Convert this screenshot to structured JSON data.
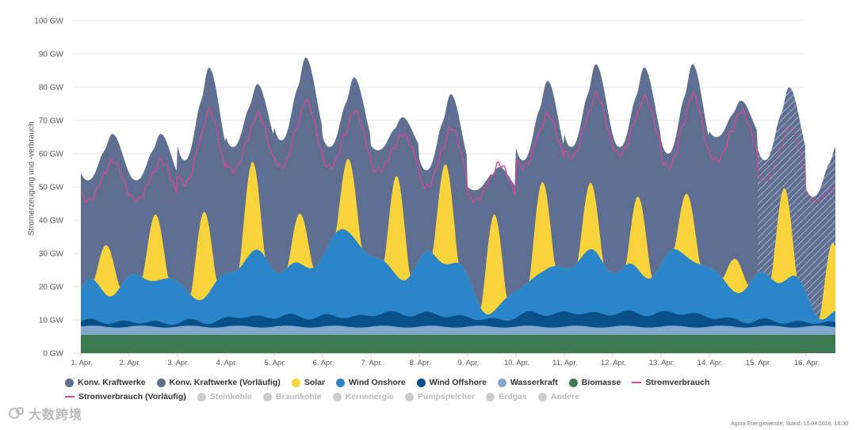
{
  "chart_data": {
    "type": "area",
    "y_axis_label": "Stromerzeugung und -verbrauch",
    "ylim": [
      0,
      100
    ],
    "y_ticks": [
      "0 GW",
      "10 GW",
      "20 GW",
      "30 GW",
      "40 GW",
      "50 GW",
      "60 GW",
      "70 GW",
      "80 GW",
      "90 GW",
      "100 GW"
    ],
    "x_range_days": [
      0,
      15.6
    ],
    "x_ticks": [
      "1. Apr.",
      "2. Apr.",
      "3. Apr.",
      "4. Apr.",
      "5. Apr.",
      "6. Apr.",
      "7. Apr.",
      "8. Apr.",
      "9. Apr.",
      "10. Apr.",
      "11. Apr.",
      "12. Apr.",
      "13. Apr.",
      "14. Apr.",
      "15. Apr.",
      "16. Apr."
    ],
    "provisional_from_day": 14.0,
    "series_stacked": [
      {
        "name": "Biomasse",
        "color": "#3d7a52",
        "base": 5.5,
        "amp": 0
      },
      {
        "name": "Wasserkraft",
        "color": "#7fa8cc",
        "base": 2.5,
        "amp": 0.3
      },
      {
        "name": "Wind Offshore",
        "color": "#08508a",
        "day_values": [
          1.5,
          1.2,
          1.5,
          3,
          3,
          3,
          4,
          3.5,
          2,
          4,
          4,
          4,
          4,
          2,
          1.5,
          1
        ]
      },
      {
        "name": "Wind Onshore",
        "color": "#2a86c8",
        "day_values": [
          10,
          14,
          8,
          18,
          14,
          25,
          12,
          18,
          3,
          12,
          17,
          12,
          18,
          10,
          14,
          2
        ]
      },
      {
        "name": "Solar",
        "color": "#f8d33a",
        "peaks": [
          15,
          20,
          26,
          27,
          15,
          22,
          30,
          30,
          29,
          27,
          20,
          22,
          19,
          10,
          28,
          21
        ]
      },
      {
        "name": "Konv. Kraftwerke",
        "color": "#5f6f92",
        "total_troughs": [
          52,
          52,
          58,
          62,
          64,
          62,
          61,
          55,
          49,
          58,
          62,
          62,
          60,
          65,
          58,
          47
        ],
        "total_peaks": [
          66,
          66,
          86,
          81,
          89,
          83,
          71,
          78,
          56,
          82,
          87,
          86,
          87,
          76,
          80,
          63
        ]
      }
    ],
    "consumption": {
      "name": "Stromverbrauch",
      "color": "#cc4a9a",
      "troughs": [
        46,
        46,
        51,
        55,
        56,
        56,
        55,
        50,
        46,
        56,
        59,
        60,
        56,
        58,
        52,
        46
      ],
      "peaks": [
        58,
        58,
        73,
        72,
        76,
        73,
        66,
        68,
        57,
        72,
        78,
        77,
        78,
        73,
        68,
        50
      ]
    },
    "legend": [
      {
        "label": "Konv. Kraftwerke",
        "color": "#5f6f92",
        "kind": "dot",
        "active": true
      },
      {
        "label": "Konv. Kraftwerke (Vorläufig)",
        "color": "#5f6f92",
        "kind": "dot",
        "active": true
      },
      {
        "label": "Solar",
        "color": "#f8d33a",
        "kind": "dot",
        "active": true
      },
      {
        "label": "Wind Onshore",
        "color": "#2a86c8",
        "kind": "dot",
        "active": true
      },
      {
        "label": "Wind Offshore",
        "color": "#08508a",
        "kind": "dot",
        "active": true
      },
      {
        "label": "Wasserkraft",
        "color": "#7fa8cc",
        "kind": "dot",
        "active": true
      },
      {
        "label": "Biomasse",
        "color": "#3d7a52",
        "kind": "dot",
        "active": true
      },
      {
        "label": "Stromverbrauch",
        "color": "#cc4a9a",
        "kind": "line",
        "active": true
      },
      {
        "label": "Stromverbrauch (Vorläufig)",
        "color": "#cc4a9a",
        "kind": "dash",
        "active": true
      },
      {
        "label": "Steinkohle",
        "color": "#cccccc",
        "kind": "dot",
        "active": false
      },
      {
        "label": "Braunkohle",
        "color": "#cccccc",
        "kind": "dot",
        "active": false
      },
      {
        "label": "Kernenergie",
        "color": "#cccccc",
        "kind": "dot",
        "active": false
      },
      {
        "label": "Pumpspeicher",
        "color": "#cccccc",
        "kind": "dot",
        "active": false
      },
      {
        "label": "Erdgas",
        "color": "#cccccc",
        "kind": "dot",
        "active": false
      },
      {
        "label": "Andere",
        "color": "#cccccc",
        "kind": "dot",
        "active": false
      }
    ]
  },
  "credit": "Agora Energiewende; Stand: 15.04.2018, 18:30",
  "watermark": "大数跨境"
}
